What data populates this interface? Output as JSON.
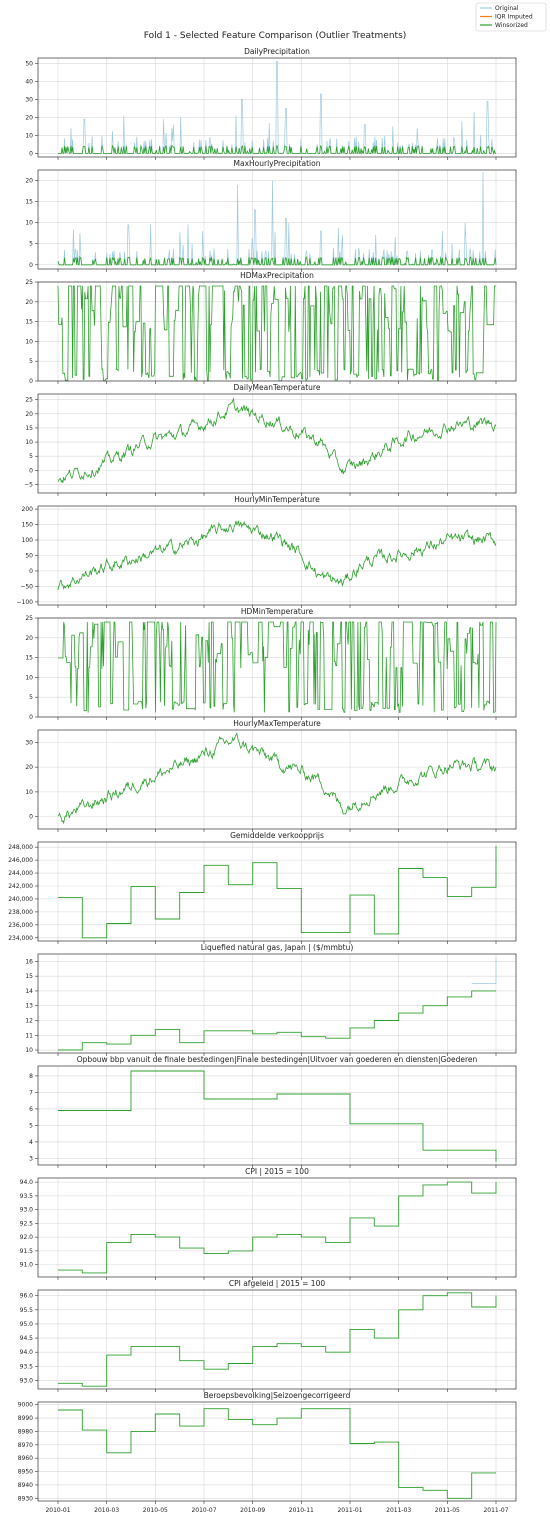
{
  "figure": {
    "title": "Fold 1 - Selected Feature Comparison (Outlier Treatments)"
  },
  "legend": {
    "placement": "top-right",
    "entries": [
      {
        "name": "Original",
        "color": "#9ecae1"
      },
      {
        "name": "IQR Imputed",
        "color": "#ff7f0e"
      },
      {
        "name": "Winsorized",
        "color": "#2ca02c"
      }
    ]
  },
  "x_axis": {
    "shared": true,
    "ticks": [
      "2010-01",
      "2010-03",
      "2010-05",
      "2010-07",
      "2010-09",
      "2010-11",
      "2011-01",
      "2011-03",
      "2011-05",
      "2011-07"
    ]
  },
  "chart_data": [
    {
      "type": "line",
      "title": "DailyPrecipitation",
      "ylim": [
        -2,
        53
      ],
      "yticks": [
        "0",
        "10",
        "20",
        "30",
        "40",
        "50"
      ],
      "style": "spiky",
      "peaks_original": [
        [
          0.03,
          14
        ],
        [
          0.06,
          19
        ],
        [
          0.15,
          21
        ],
        [
          0.28,
          20
        ],
        [
          0.42,
          30
        ],
        [
          0.5,
          51
        ],
        [
          0.52,
          25
        ],
        [
          0.6,
          33
        ],
        [
          0.7,
          16
        ],
        [
          0.82,
          14
        ],
        [
          0.95,
          23
        ],
        [
          0.98,
          29
        ]
      ],
      "series": [
        {
          "name": "Original",
          "values": []
        },
        {
          "name": "Winsorized",
          "values": []
        }
      ]
    },
    {
      "type": "line",
      "title": "MaxHourlyPrecipitation",
      "ylim": [
        -1,
        22.5
      ],
      "yticks": [
        "0",
        "5",
        "10",
        "15",
        "20"
      ],
      "style": "spiky",
      "peaks_original": [
        [
          0.16,
          9.5
        ],
        [
          0.33,
          8
        ],
        [
          0.41,
          19
        ],
        [
          0.45,
          13
        ],
        [
          0.49,
          20
        ],
        [
          0.52,
          11
        ],
        [
          0.6,
          8
        ],
        [
          0.72,
          3
        ],
        [
          0.9,
          5
        ],
        [
          0.97,
          22
        ]
      ],
      "series": [
        {
          "name": "Original",
          "values": []
        },
        {
          "name": "Winsorized",
          "values": []
        }
      ]
    },
    {
      "type": "line",
      "title": "HDMaxPrecipitation",
      "ylim": [
        0,
        25
      ],
      "yticks": [
        "0",
        "5",
        "10",
        "15",
        "20",
        "25"
      ],
      "style": "dense-jumps",
      "range": [
        0,
        24
      ],
      "series": [
        {
          "name": "Winsorized",
          "values": []
        }
      ]
    },
    {
      "type": "line",
      "title": "DailyMeanTemperature",
      "ylim": [
        -8,
        27
      ],
      "yticks": [
        "−5",
        "0",
        "5",
        "10",
        "15",
        "20",
        "25"
      ],
      "style": "seasonal",
      "curve_y": [
        [
          0,
          -3
        ],
        [
          0.1,
          2
        ],
        [
          0.2,
          10
        ],
        [
          0.3,
          14
        ],
        [
          0.4,
          22
        ],
        [
          0.5,
          17
        ],
        [
          0.6,
          10
        ],
        [
          0.65,
          0
        ],
        [
          0.7,
          3
        ],
        [
          0.75,
          8
        ],
        [
          0.8,
          12
        ],
        [
          0.9,
          16
        ],
        [
          1,
          17
        ]
      ],
      "series": [
        {
          "name": "Winsorized",
          "values": []
        }
      ]
    },
    {
      "type": "line",
      "title": "HourlyMinTemperature",
      "ylim": [
        -110,
        210
      ],
      "yticks": [
        "−100",
        "−50",
        "0",
        "50",
        "100",
        "150",
        "200"
      ],
      "style": "seasonal",
      "curve_y": [
        [
          0,
          -50
        ],
        [
          0.1,
          10
        ],
        [
          0.2,
          50
        ],
        [
          0.3,
          90
        ],
        [
          0.4,
          150
        ],
        [
          0.5,
          110
        ],
        [
          0.55,
          60
        ],
        [
          0.6,
          -20
        ],
        [
          0.65,
          -40
        ],
        [
          0.7,
          30
        ],
        [
          0.8,
          60
        ],
        [
          0.9,
          100
        ],
        [
          1,
          100
        ]
      ],
      "series": [
        {
          "name": "Winsorized",
          "values": []
        }
      ]
    },
    {
      "type": "line",
      "title": "HDMinTemperature",
      "ylim": [
        0,
        25
      ],
      "yticks": [
        "0",
        "5",
        "10",
        "15",
        "20",
        "25"
      ],
      "style": "dense-jumps",
      "range": [
        1,
        24
      ],
      "series": [
        {
          "name": "Winsorized",
          "values": []
        }
      ]
    },
    {
      "type": "line",
      "title": "HourlyMaxTemperature",
      "ylim": [
        -5,
        35
      ],
      "yticks": [
        "0",
        "10",
        "20",
        "30"
      ],
      "style": "seasonal",
      "curve_y": [
        [
          0,
          -1
        ],
        [
          0.1,
          7
        ],
        [
          0.2,
          15
        ],
        [
          0.3,
          22
        ],
        [
          0.4,
          31
        ],
        [
          0.5,
          22
        ],
        [
          0.6,
          15
        ],
        [
          0.65,
          3
        ],
        [
          0.7,
          8
        ],
        [
          0.8,
          15
        ],
        [
          0.9,
          21
        ],
        [
          1,
          20
        ]
      ],
      "series": [
        {
          "name": "Winsorized",
          "values": []
        }
      ]
    },
    {
      "type": "line",
      "title": "Gemiddelde verkoopprijs",
      "ylim": [
        233500,
        248800
      ],
      "yticks": [
        "234,000",
        "236,000",
        "238,000",
        "240,000",
        "242,000",
        "244,000",
        "246,000",
        "248,000"
      ],
      "style": "step",
      "step_values": [
        240200,
        234000,
        236200,
        241900,
        236900,
        241000,
        245200,
        242200,
        245600,
        241600,
        234800,
        234800,
        240600,
        234600,
        244700,
        243300,
        240400,
        241800,
        248200
      ],
      "series": [
        {
          "name": "Winsorized",
          "values": []
        }
      ]
    },
    {
      "type": "line",
      "title": "Liquefied natural gas, Japan | ($/mmbtu)",
      "ylim": [
        9.8,
        16.5
      ],
      "yticks": [
        "10",
        "11",
        "12",
        "13",
        "14",
        "15",
        "16"
      ],
      "style": "step",
      "step_values": [
        10.0,
        10.5,
        10.4,
        11.0,
        11.4,
        10.5,
        11.3,
        11.3,
        11.1,
        11.2,
        10.9,
        10.8,
        11.5,
        12.0,
        12.5,
        13.0,
        13.6,
        14.0,
        14.0
      ],
      "original_last": [
        14.5,
        16.2
      ],
      "series": [
        {
          "name": "Original",
          "values": []
        },
        {
          "name": "Winsorized",
          "values": []
        }
      ]
    },
    {
      "type": "line",
      "title": "Opbouw bbp vanuit de finale bestedingen|Finale bestedingen|Uitvoer van goederen en diensten|Goederen",
      "ylim": [
        2.6,
        8.6
      ],
      "yticks": [
        "3",
        "4",
        "5",
        "6",
        "7",
        "8"
      ],
      "style": "step",
      "step_values": [
        5.9,
        5.9,
        5.9,
        8.3,
        8.3,
        8.3,
        6.6,
        6.6,
        6.6,
        6.9,
        6.9,
        6.9,
        5.1,
        5.1,
        5.1,
        3.5,
        3.5,
        3.5,
        2.8
      ],
      "series": [
        {
          "name": "Winsorized",
          "values": []
        }
      ]
    },
    {
      "type": "line",
      "title": "CPI | 2015 = 100",
      "ylim": [
        90.55,
        94.15
      ],
      "yticks": [
        "91.0",
        "91.5",
        "92.0",
        "92.5",
        "93.0",
        "93.5",
        "94.0"
      ],
      "style": "step",
      "step_values": [
        90.8,
        90.7,
        91.8,
        92.1,
        92.0,
        91.6,
        91.4,
        91.5,
        92.0,
        92.1,
        92.0,
        91.8,
        92.7,
        92.4,
        93.5,
        93.9,
        94.0,
        93.6,
        94.0
      ],
      "series": [
        {
          "name": "Winsorized",
          "values": []
        }
      ]
    },
    {
      "type": "line",
      "title": "CPI afgeleid | 2015 = 100",
      "ylim": [
        92.7,
        96.2
      ],
      "yticks": [
        "93.0",
        "93.5",
        "94.0",
        "94.5",
        "95.0",
        "95.5",
        "96.0"
      ],
      "style": "step",
      "step_values": [
        92.9,
        92.8,
        93.9,
        94.2,
        94.2,
        93.7,
        93.4,
        93.6,
        94.2,
        94.3,
        94.2,
        94.0,
        94.8,
        94.5,
        95.5,
        96.0,
        96.1,
        95.6,
        96.0
      ],
      "series": [
        {
          "name": "Winsorized",
          "values": []
        }
      ]
    },
    {
      "type": "line",
      "title": "Beroepsbevolking|Seizoengecorrigeerd",
      "ylim": [
        8928,
        9002
      ],
      "yticks": [
        "8930",
        "8940",
        "8950",
        "8960",
        "8970",
        "8980",
        "8990",
        "9000"
      ],
      "style": "step",
      "step_values": [
        8996,
        8981,
        8964,
        8980,
        8993,
        8984,
        8997,
        8989,
        8985,
        8990,
        8997,
        8997,
        8971,
        8972,
        8938,
        8936,
        8930,
        8949,
        8949
      ],
      "series": [
        {
          "name": "Winsorized",
          "values": []
        }
      ]
    }
  ]
}
